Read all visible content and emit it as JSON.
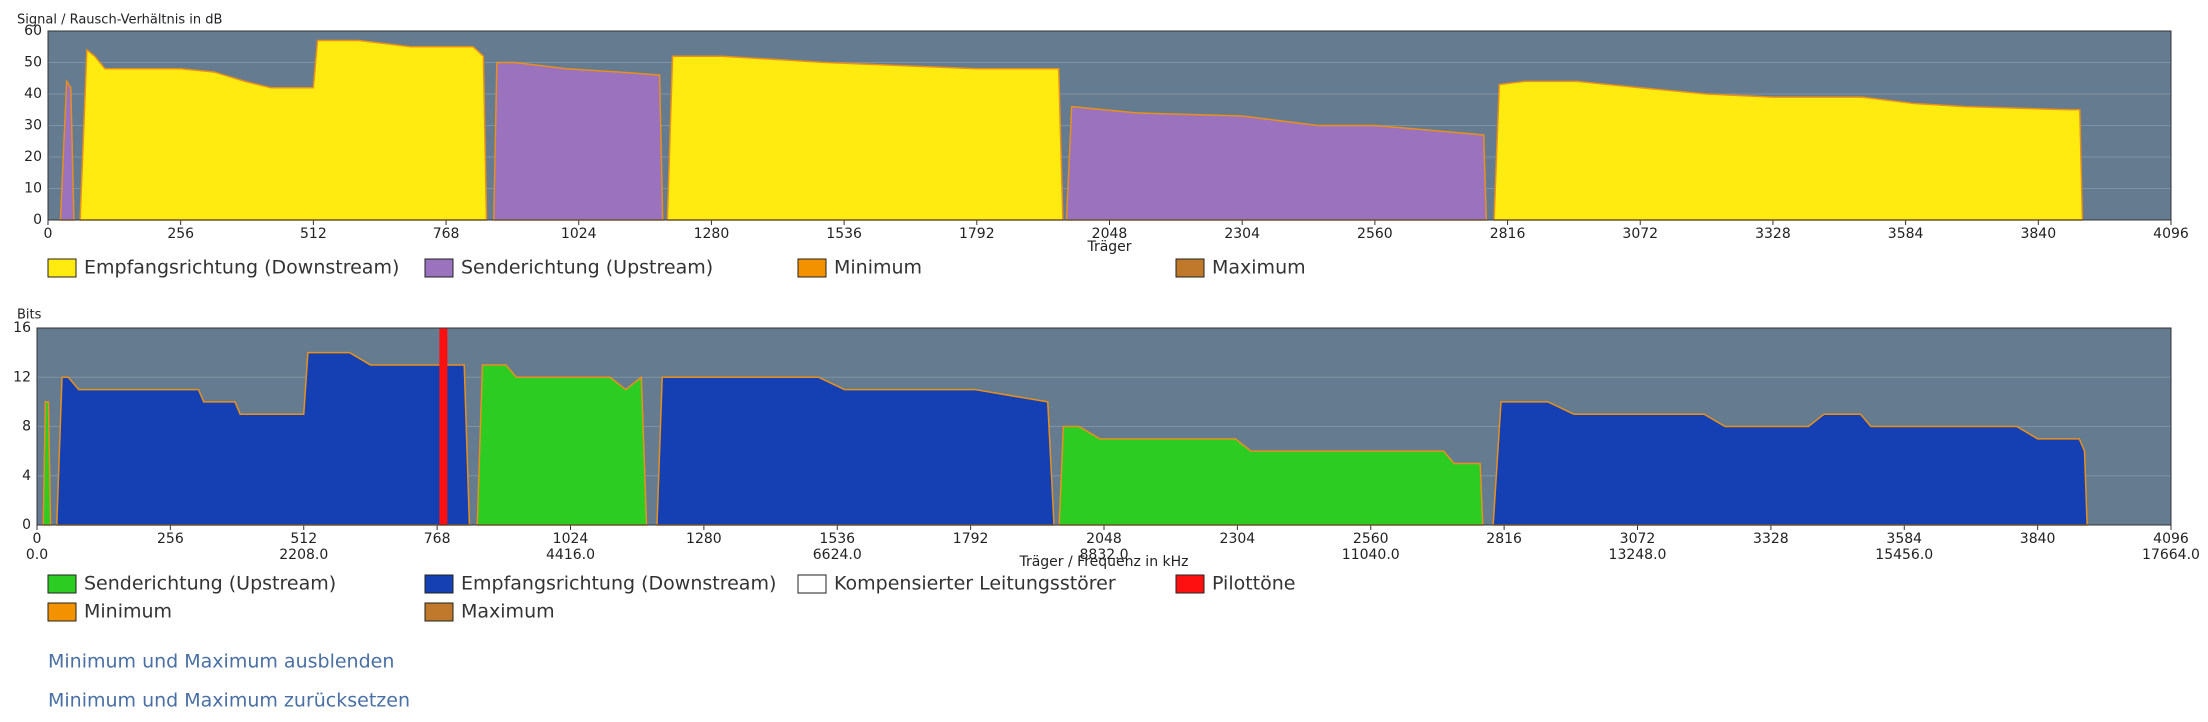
{
  "chart_data": [
    {
      "type": "area",
      "title": "Signal / Rausch-Verhältnis in dB",
      "xlabel": "Träger",
      "xlim": [
        0,
        4096
      ],
      "xticks": [
        0,
        256,
        512,
        768,
        1024,
        1280,
        1536,
        1792,
        2048,
        2304,
        2560,
        2816,
        3072,
        3328,
        3584,
        3840,
        4096
      ],
      "ylim": [
        0,
        60
      ],
      "yticks": [
        0,
        10,
        20,
        30,
        40,
        50,
        60
      ],
      "grid": true,
      "x": [
        24,
        36,
        44,
        50,
        62,
        75,
        90,
        110,
        256,
        320,
        380,
        430,
        500,
        512,
        520,
        600,
        700,
        820,
        840,
        846,
        860,
        866,
        900,
        1000,
        1100,
        1180,
        1186,
        1195,
        1205,
        1300,
        1500,
        1792,
        1950,
        1958,
        1965,
        1975,
        2100,
        2304,
        2450,
        2560,
        2700,
        2770,
        2775,
        2790,
        2800,
        2850,
        2950,
        3072,
        3200,
        3328,
        3500,
        3600,
        3700,
        3900,
        3920,
        3925
      ],
      "series": [
        {
          "name": "Empfangsrichtung (Downstream)",
          "color": "#ffeb10",
          "values": [
            null,
            null,
            null,
            null,
            0,
            54,
            52,
            48,
            48,
            47,
            44,
            42,
            42,
            42,
            57,
            57,
            55,
            55,
            52,
            0,
            null,
            null,
            null,
            null,
            null,
            null,
            null,
            0,
            52,
            52,
            50,
            48,
            48,
            0,
            null,
            null,
            null,
            null,
            null,
            null,
            null,
            null,
            null,
            0,
            43,
            44,
            44,
            42,
            40,
            39,
            39,
            37,
            36,
            35,
            35,
            0
          ]
        },
        {
          "name": "Senderichtung (Upstream)",
          "color": "#9b72bd",
          "values": [
            0,
            44,
            42,
            0,
            null,
            null,
            null,
            null,
            null,
            null,
            null,
            null,
            null,
            null,
            null,
            null,
            null,
            null,
            null,
            null,
            0,
            50,
            50,
            48,
            47,
            46,
            0,
            null,
            null,
            null,
            null,
            null,
            null,
            null,
            0,
            36,
            34,
            33,
            30,
            30,
            28,
            27,
            0,
            null,
            null,
            null,
            null,
            null,
            null,
            null,
            null,
            null,
            null,
            null,
            null,
            null
          ]
        },
        {
          "name": "Minimum",
          "color": "#f39200"
        },
        {
          "name": "Maximum",
          "color": "#c0782a"
        }
      ]
    },
    {
      "type": "area",
      "title": "Bits",
      "xlabel": "Träger / Frequenz in kHz",
      "xlim": [
        0,
        4096
      ],
      "xticks": [
        0,
        256,
        512,
        768,
        1024,
        1280,
        1536,
        1792,
        2048,
        2304,
        2560,
        2816,
        3072,
        3328,
        3584,
        3840,
        4096
      ],
      "x2lim": [
        0,
        17664
      ],
      "x2ticks": [
        {
          "value": 0,
          "label": "0.0"
        },
        {
          "value": 2208,
          "label": "2208.0"
        },
        {
          "value": 4416,
          "label": "4416.0"
        },
        {
          "value": 6624,
          "label": "6624.0"
        },
        {
          "value": 8832,
          "label": "8832.0"
        },
        {
          "value": 11040,
          "label": "11040.0"
        },
        {
          "value": 13248,
          "label": "13248.0"
        },
        {
          "value": 15456,
          "label": "15456.0"
        },
        {
          "value": 17664,
          "label": "17664.0"
        }
      ],
      "ylim": [
        0,
        16
      ],
      "yticks": [
        0,
        4,
        8,
        12,
        16
      ],
      "grid": true,
      "x": [
        12,
        16,
        22,
        26,
        38,
        48,
        60,
        80,
        256,
        310,
        320,
        380,
        390,
        440,
        500,
        512,
        520,
        600,
        640,
        780,
        820,
        830,
        845,
        855,
        900,
        920,
        1100,
        1130,
        1160,
        1170,
        1190,
        1200,
        1500,
        1550,
        1800,
        1940,
        1952,
        1962,
        1970,
        2000,
        2040,
        2300,
        2330,
        2700,
        2720,
        2770,
        2775,
        2795,
        2810,
        2900,
        2950,
        3200,
        3240,
        3400,
        3430,
        3500,
        3520,
        3800,
        3840,
        3920,
        3930,
        3935
      ],
      "series": [
        {
          "name": "Senderichtung (Upstream)",
          "color": "#2ccc22",
          "values": [
            0,
            10,
            10,
            0,
            null,
            null,
            null,
            null,
            null,
            null,
            null,
            null,
            null,
            null,
            null,
            null,
            null,
            null,
            null,
            null,
            null,
            null,
            0,
            13,
            13,
            12,
            12,
            11,
            12,
            0,
            null,
            null,
            null,
            null,
            null,
            null,
            null,
            0,
            8,
            8,
            7,
            7,
            6,
            6,
            5,
            5,
            0,
            null,
            null,
            null,
            null,
            null,
            null,
            null,
            null,
            null,
            null,
            null,
            null,
            null,
            null,
            null
          ]
        },
        {
          "name": "Empfangsrichtung (Downstream)",
          "color": "#1440b4",
          "values": [
            null,
            null,
            null,
            null,
            0,
            12,
            12,
            11,
            11,
            11,
            10,
            10,
            9,
            9,
            9,
            9,
            14,
            14,
            13,
            13,
            13,
            0,
            null,
            null,
            null,
            null,
            null,
            null,
            null,
            null,
            0,
            12,
            12,
            11,
            11,
            10,
            0,
            null,
            null,
            null,
            null,
            null,
            null,
            null,
            null,
            null,
            null,
            0,
            10,
            10,
            9,
            9,
            8,
            8,
            9,
            9,
            8,
            8,
            7,
            7,
            6,
            0
          ]
        },
        {
          "name": "Kompensierter Leitungsstörer",
          "color": "#ffffff"
        },
        {
          "name": "Pilottöne",
          "color": "#ff1010",
          "type": "pilot",
          "x": [
            780
          ],
          "values": [
            16
          ]
        },
        {
          "name": "Minimum",
          "color": "#f39200"
        },
        {
          "name": "Maximum",
          "color": "#c0782a"
        }
      ]
    }
  ],
  "links": [
    "Minimum und Maximum ausblenden",
    "Minimum und Maximum zurücksetzen"
  ]
}
